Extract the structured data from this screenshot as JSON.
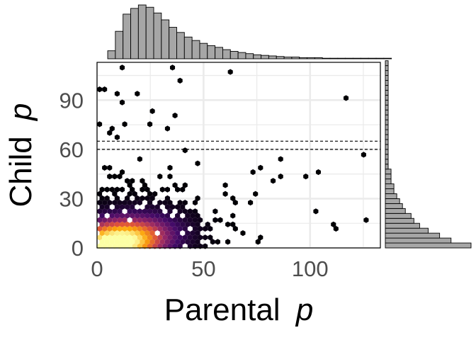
{
  "chart_data": {
    "type": "heatmap",
    "subtype": "hexbin scatter with marginal histograms",
    "xlabel": "Parental",
    "xlabel_var": "p",
    "ylabel": "Child",
    "ylabel_var": "p",
    "xlim": [
      0,
      133
    ],
    "ylim": [
      0,
      113
    ],
    "x_ticks": [
      0,
      50,
      100
    ],
    "y_ticks": [
      0,
      30,
      60,
      90
    ],
    "grid": true,
    "reference_lines_y": [
      60,
      65
    ],
    "colormap": "inferno",
    "colors": {
      "hex_low": "#000004",
      "hex_mid": "#781c6d",
      "hex_high": "#fcffa4",
      "histogram_fill": "#a6a6a6",
      "histogram_edge": "#000000",
      "grid": "#ebebeb"
    },
    "density_model": {
      "peak": [
        9,
        3
      ],
      "spread_x": 24,
      "spread_y": 15,
      "correlation": 0.25
    },
    "x_marginal_histogram": {
      "bin_width": 3.6,
      "bin_start": 5,
      "counts": [
        14,
        48,
        78,
        88,
        94,
        90,
        80,
        68,
        55,
        46,
        38,
        32,
        27,
        23,
        20,
        16,
        13,
        11,
        9,
        7,
        6,
        5,
        4,
        3,
        3,
        2,
        2,
        2,
        1,
        1,
        1,
        1,
        1,
        1,
        1,
        1,
        1
      ]
    },
    "y_marginal_histogram": {
      "bin_width": 3,
      "bin_start": 0,
      "counts": [
        30,
        23,
        19,
        15,
        12,
        10,
        9,
        7,
        6,
        5,
        4,
        3,
        3,
        2,
        2,
        2,
        1,
        1,
        1,
        1,
        1,
        1,
        1,
        1,
        1,
        1,
        1,
        1,
        1,
        1,
        1,
        1,
        1,
        1,
        1,
        1,
        1,
        1
      ]
    }
  }
}
